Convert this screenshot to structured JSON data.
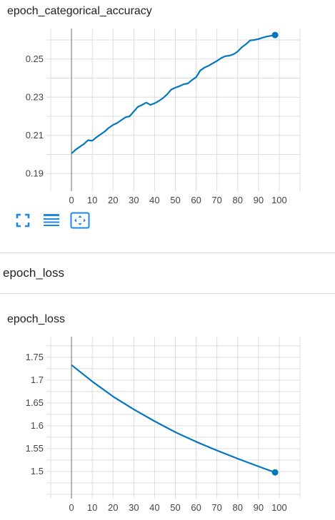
{
  "charts": {
    "accuracy": {
      "title": "epoch_categorical_accuracy"
    },
    "section_title": "epoch_loss",
    "loss": {
      "title": "epoch_loss"
    }
  },
  "toolbar": {
    "buttons": [
      {
        "icon": "fullscreen-icon"
      },
      {
        "icon": "data-table-icon"
      },
      {
        "icon": "fit-domain-icon"
      }
    ]
  },
  "colors": {
    "line": "#0277bd",
    "grid": "#dddddd",
    "axis_zero": "#9e9e9e"
  },
  "chart_data": [
    {
      "type": "line",
      "title": "epoch_categorical_accuracy",
      "xlabel": "",
      "ylabel": "",
      "xlim": [
        -10,
        110
      ],
      "ylim": [
        0.183,
        0.266
      ],
      "xticks": [
        0,
        10,
        20,
        30,
        40,
        50,
        60,
        70,
        80,
        90,
        100
      ],
      "yticks": [
        0.19,
        0.21,
        0.23,
        0.25
      ],
      "grid": true,
      "series": [
        {
          "x": [
            0,
            2,
            4,
            6,
            8,
            10,
            12,
            14,
            16,
            18,
            20,
            22,
            24,
            26,
            28,
            30,
            32,
            34,
            36,
            38,
            40,
            42,
            44,
            46,
            48,
            50,
            52,
            54,
            56,
            58,
            60,
            62,
            64,
            66,
            68,
            70,
            72,
            74,
            76,
            78,
            80,
            82,
            84,
            86,
            88,
            90,
            92,
            94,
            96,
            98
          ],
          "y": [
            0.2005,
            0.2025,
            0.204,
            0.2055,
            0.2075,
            0.2072,
            0.209,
            0.2105,
            0.212,
            0.214,
            0.2155,
            0.2165,
            0.218,
            0.2195,
            0.22,
            0.2225,
            0.225,
            0.226,
            0.2272,
            0.226,
            0.2268,
            0.228,
            0.2295,
            0.2315,
            0.234,
            0.235,
            0.2358,
            0.2368,
            0.2372,
            0.239,
            0.2405,
            0.244,
            0.2455,
            0.2465,
            0.2478,
            0.249,
            0.2505,
            0.2515,
            0.2518,
            0.2525,
            0.254,
            0.2562,
            0.2578,
            0.2598,
            0.26,
            0.2605,
            0.2612,
            0.2618,
            0.2622,
            0.2626
          ]
        }
      ]
    },
    {
      "type": "line",
      "title": "epoch_loss",
      "xlabel": "",
      "ylabel": "",
      "xlim": [
        -10,
        110
      ],
      "ylim": [
        1.45,
        1.795
      ],
      "xticks": [
        0,
        10,
        20,
        30,
        40,
        50,
        60,
        70,
        80,
        90,
        100
      ],
      "yticks": [
        1.5,
        1.55,
        1.6,
        1.65,
        1.7,
        1.75
      ],
      "grid": true,
      "series": [
        {
          "x": [
            0,
            10,
            20,
            30,
            40,
            50,
            60,
            70,
            80,
            90,
            98
          ],
          "y": [
            1.733,
            1.697,
            1.664,
            1.636,
            1.61,
            1.586,
            1.565,
            1.546,
            1.528,
            1.511,
            1.498
          ]
        }
      ]
    }
  ]
}
